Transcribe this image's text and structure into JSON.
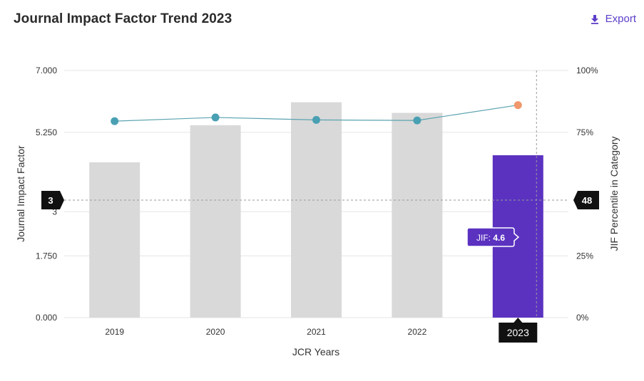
{
  "header": {
    "title": "Journal Impact Factor Trend 2023",
    "export_label": "Export",
    "export_icon": "download-icon"
  },
  "colors": {
    "bar_default": "#d9d9d9",
    "bar_highlight": "#5b32c0",
    "line": "#5aa3b0",
    "point": "#4aa0b3",
    "point_highlight": "#f0976b",
    "marker_bg": "#111111",
    "tooltip_bg": "#5b32c0"
  },
  "chart_data": {
    "type": "bar",
    "title": "Journal Impact Factor Trend 2023",
    "xlabel": "JCR Years",
    "ylabel": "Journal Impact Factor",
    "y2label": "JIF Percentile in Category",
    "categories": [
      "2019",
      "2020",
      "2021",
      "2022",
      "2023"
    ],
    "ylim": [
      0,
      7
    ],
    "yticks": [
      "0.000",
      "1.750",
      "3",
      "5.250",
      "7.000"
    ],
    "y2lim": [
      0,
      100
    ],
    "y2ticks": [
      "0%",
      "25%",
      "75%",
      "100%"
    ],
    "series": [
      {
        "name": "Journal Impact Factor",
        "type": "bar",
        "axis": "left",
        "values": [
          4.4,
          5.45,
          6.1,
          5.8,
          4.6
        ]
      },
      {
        "name": "JIF Percentile in Category",
        "type": "line",
        "axis": "right",
        "values": [
          79.5,
          81,
          80,
          79.8,
          86
        ]
      }
    ],
    "highlight_category": "2023",
    "crosshair": {
      "y_left_label": "3",
      "y_right_label": "48",
      "x_label": "2023"
    },
    "tooltip": {
      "label": "JIF: ",
      "value": "4.6"
    }
  }
}
